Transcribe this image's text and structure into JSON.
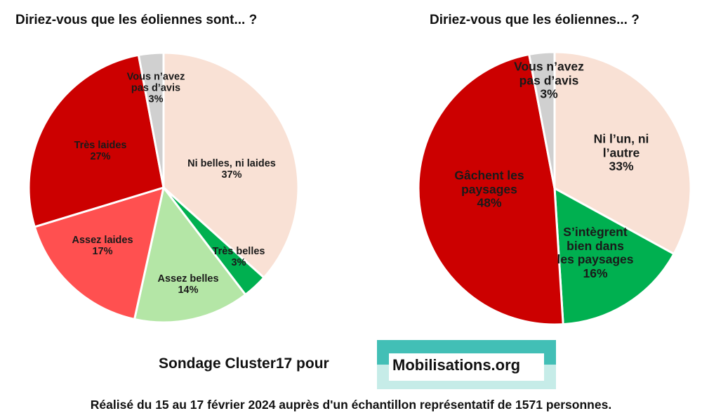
{
  "chart_data": [
    {
      "type": "pie",
      "title": "Diriez-vous que les éoliennes sont... ?",
      "slices": [
        {
          "label": "Ni belles, ni laides",
          "value": 37,
          "value_label": "37%",
          "color": "#f9e1d5"
        },
        {
          "label": "Très belles",
          "value": 3,
          "value_label": "3%",
          "color": "#00b050"
        },
        {
          "label": "Assez belles",
          "value": 14,
          "value_label": "14%",
          "color": "#b4e6a6"
        },
        {
          "label": "Assez laides",
          "value": 17,
          "value_label": "17%",
          "color": "#ff5050"
        },
        {
          "label": "Très laides",
          "value": 27,
          "value_label": "27%",
          "color": "#cc0000"
        },
        {
          "label": "Vous n’avez pas d’avis",
          "value": 3,
          "value_label": "3%",
          "color": "#d0d0d0"
        }
      ]
    },
    {
      "type": "pie",
      "title": "Diriez-vous que les éoliennes... ?",
      "slices": [
        {
          "label": "Ni l’un, ni l’autre",
          "value": 33,
          "value_label": "33%",
          "color": "#f9e1d5"
        },
        {
          "label": "S’intègrent bien dans les paysages",
          "value": 16,
          "value_label": "16%",
          "color": "#00b050"
        },
        {
          "label": "Gâchent les paysages",
          "value": 48,
          "value_label": "48%",
          "color": "#cc0000"
        },
        {
          "label": "Vous n’avez pas d’avis",
          "value": 3,
          "value_label": "3%",
          "color": "#d0d0d0"
        }
      ]
    }
  ],
  "footer": {
    "sondage": "Sondage Cluster17 pour",
    "logo_text": "Mobilisations.org",
    "logo_colors": {
      "top": "#42bfb6",
      "bottom": "#c6ece8"
    },
    "note": "Réalisé du 15 au 17 février 2024 auprès d'un  échantillon représentatif de 1571 personnes."
  }
}
